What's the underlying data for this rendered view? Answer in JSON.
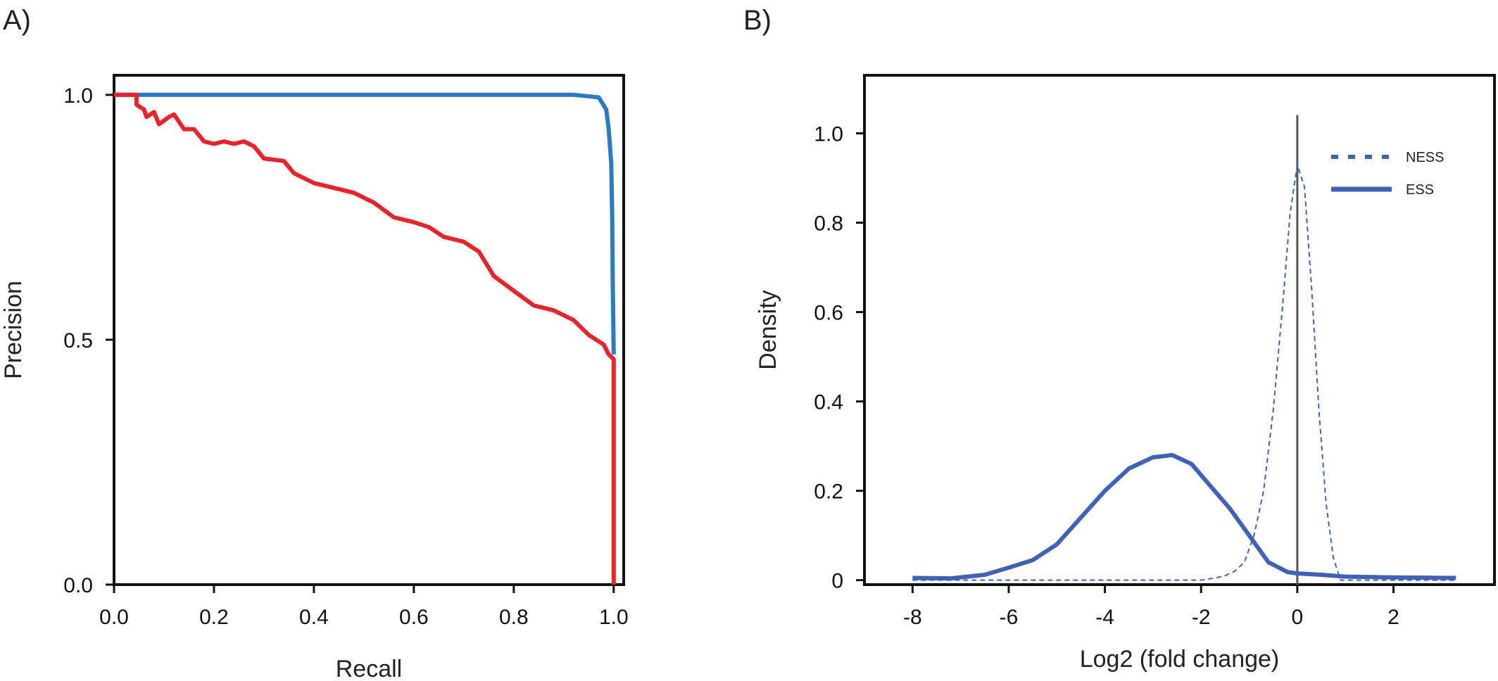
{
  "panels": {
    "a_label": "A)",
    "b_label": "B)"
  },
  "colors": {
    "red": "#e8242b",
    "blue_pr": "#2b7bc2",
    "density_blue": "#3f62b5",
    "axis": "#111111",
    "zero_line": "#555555"
  },
  "chart_data": [
    {
      "type": "line",
      "title": "",
      "xlabel": "Recall",
      "ylabel": "Precision",
      "xlim": [
        0,
        1.02
      ],
      "ylim": [
        0,
        1.04
      ],
      "x_ticks": [
        0.0,
        0.2,
        0.4,
        0.6,
        0.8,
        1.0
      ],
      "x_tick_labels": [
        "0.0",
        "0.2",
        "0.4",
        "0.6",
        "0.8",
        "1.0"
      ],
      "y_ticks": [
        0.0,
        0.5,
        1.0
      ],
      "y_tick_labels": [
        "0.0",
        "0.5",
        "1.0"
      ],
      "grid": false,
      "series": [
        {
          "name": "blue",
          "color": "#2b7bc2",
          "points": [
            [
              0.0,
              1.0
            ],
            [
              0.92,
              1.0
            ],
            [
              0.97,
              0.995
            ],
            [
              0.985,
              0.97
            ],
            [
              0.99,
              0.93
            ],
            [
              0.995,
              0.86
            ],
            [
              0.997,
              0.75
            ],
            [
              0.998,
              0.62
            ],
            [
              0.999,
              0.55
            ],
            [
              1.0,
              0.47
            ]
          ]
        },
        {
          "name": "red",
          "color": "#e8242b",
          "points": [
            [
              0.0,
              1.0
            ],
            [
              0.045,
              1.0
            ],
            [
              0.045,
              0.98
            ],
            [
              0.06,
              0.97
            ],
            [
              0.065,
              0.955
            ],
            [
              0.08,
              0.965
            ],
            [
              0.09,
              0.94
            ],
            [
              0.11,
              0.955
            ],
            [
              0.12,
              0.96
            ],
            [
              0.14,
              0.93
            ],
            [
              0.16,
              0.93
            ],
            [
              0.18,
              0.905
            ],
            [
              0.2,
              0.9
            ],
            [
              0.22,
              0.905
            ],
            [
              0.24,
              0.9
            ],
            [
              0.26,
              0.905
            ],
            [
              0.28,
              0.895
            ],
            [
              0.3,
              0.87
            ],
            [
              0.34,
              0.865
            ],
            [
              0.36,
              0.84
            ],
            [
              0.4,
              0.82
            ],
            [
              0.44,
              0.81
            ],
            [
              0.48,
              0.8
            ],
            [
              0.52,
              0.78
            ],
            [
              0.56,
              0.75
            ],
            [
              0.6,
              0.74
            ],
            [
              0.63,
              0.73
            ],
            [
              0.66,
              0.71
            ],
            [
              0.7,
              0.7
            ],
            [
              0.73,
              0.68
            ],
            [
              0.76,
              0.63
            ],
            [
              0.8,
              0.6
            ],
            [
              0.84,
              0.57
            ],
            [
              0.88,
              0.56
            ],
            [
              0.92,
              0.54
            ],
            [
              0.95,
              0.51
            ],
            [
              0.98,
              0.49
            ],
            [
              0.99,
              0.47
            ],
            [
              1.0,
              0.46
            ],
            [
              1.0,
              0.0
            ]
          ]
        }
      ]
    },
    {
      "type": "line",
      "title": "",
      "xlabel": "Log2 (fold change)",
      "ylabel": "Density",
      "xlim": [
        -9.0,
        4.1
      ],
      "ylim": [
        -0.01,
        1.13
      ],
      "x_ticks": [
        -8,
        -6,
        -4,
        -2,
        0,
        2
      ],
      "x_tick_labels": [
        "-8",
        "-6",
        "-4",
        "-2",
        "0",
        "2"
      ],
      "y_ticks": [
        0.0,
        0.2,
        0.4,
        0.6,
        0.8,
        1.0
      ],
      "y_tick_labels": [
        "0",
        "0.2",
        "0.4",
        "0.6",
        "0.8",
        "1.0"
      ],
      "vertical_line_x": 0,
      "grid": false,
      "legend": {
        "position": "top-right",
        "entries": [
          "NESS",
          "ESS"
        ]
      },
      "series": [
        {
          "name": "NESS",
          "style": "dashed",
          "color": "#3f62b5",
          "points": [
            [
              -8.0,
              0.0
            ],
            [
              -2.0,
              0.0
            ],
            [
              -1.7,
              0.005
            ],
            [
              -1.5,
              0.01
            ],
            [
              -1.3,
              0.02
            ],
            [
              -1.1,
              0.04
            ],
            [
              -0.9,
              0.1
            ],
            [
              -0.7,
              0.2
            ],
            [
              -0.5,
              0.38
            ],
            [
              -0.3,
              0.62
            ],
            [
              -0.15,
              0.82
            ],
            [
              0.0,
              0.93
            ],
            [
              0.15,
              0.88
            ],
            [
              0.3,
              0.65
            ],
            [
              0.45,
              0.38
            ],
            [
              0.6,
              0.17
            ],
            [
              0.75,
              0.05
            ],
            [
              0.9,
              0.0
            ],
            [
              3.3,
              0.0
            ]
          ]
        },
        {
          "name": "ESS",
          "style": "solid",
          "color": "#3f62b5",
          "points": [
            [
              -8.0,
              0.005
            ],
            [
              -7.2,
              0.004
            ],
            [
              -6.5,
              0.012
            ],
            [
              -6.0,
              0.028
            ],
            [
              -5.5,
              0.045
            ],
            [
              -5.0,
              0.08
            ],
            [
              -4.5,
              0.14
            ],
            [
              -4.0,
              0.2
            ],
            [
              -3.5,
              0.25
            ],
            [
              -3.0,
              0.275
            ],
            [
              -2.6,
              0.28
            ],
            [
              -2.2,
              0.26
            ],
            [
              -1.8,
              0.21
            ],
            [
              -1.4,
              0.16
            ],
            [
              -1.0,
              0.1
            ],
            [
              -0.6,
              0.04
            ],
            [
              -0.2,
              0.018
            ],
            [
              0.0,
              0.015
            ],
            [
              0.5,
              0.012
            ],
            [
              1.0,
              0.008
            ],
            [
              2.0,
              0.006
            ],
            [
              3.3,
              0.005
            ]
          ]
        }
      ]
    }
  ]
}
